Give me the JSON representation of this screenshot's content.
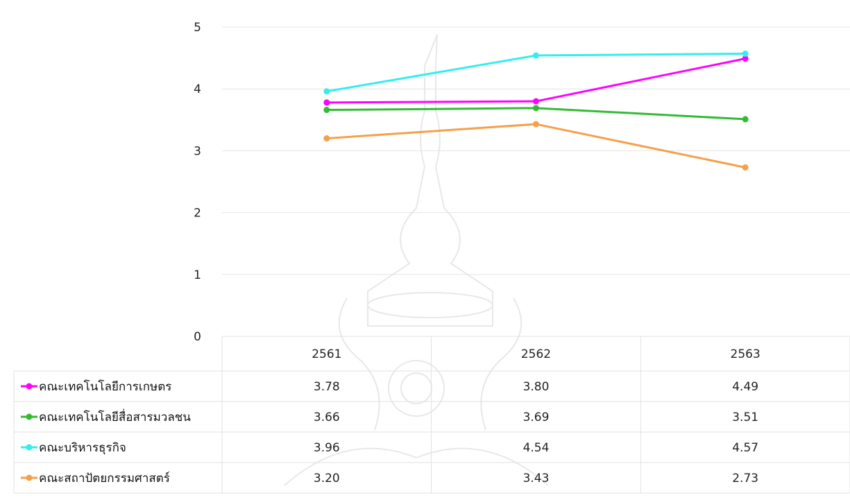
{
  "chart_data": {
    "type": "line",
    "title": "",
    "xlabel": "",
    "ylabel": "",
    "categories": [
      "2561",
      "2562",
      "2563"
    ],
    "ylim": [
      0,
      5
    ],
    "yticks": [
      "0",
      "1",
      "2",
      "3",
      "4",
      "5"
    ],
    "grid": true,
    "legend": "data-table-left",
    "series": [
      {
        "name": "คณะเทคโนโลยีการเกษตร",
        "color": "#ff00ff",
        "values": [
          3.78,
          3.8,
          4.49
        ],
        "labels": [
          "3.78",
          "3.80",
          "4.49"
        ]
      },
      {
        "name": "คณะเทคโนโลยีสื่อสารมวลชน",
        "color": "#33bb33",
        "values": [
          3.66,
          3.69,
          3.51
        ],
        "labels": [
          "3.66",
          "3.69",
          "3.51"
        ]
      },
      {
        "name": "คณะบริหารธุรกิจ",
        "color": "#33eeee",
        "values": [
          3.96,
          4.54,
          4.57
        ],
        "labels": [
          "3.96",
          "4.54",
          "4.57"
        ]
      },
      {
        "name": "คณะสถาปัตยกรรมศาสตร์",
        "color": "#f5a04a",
        "values": [
          3.2,
          3.43,
          2.73
        ],
        "labels": [
          "3.20",
          "3.43",
          "2.73"
        ]
      }
    ]
  }
}
